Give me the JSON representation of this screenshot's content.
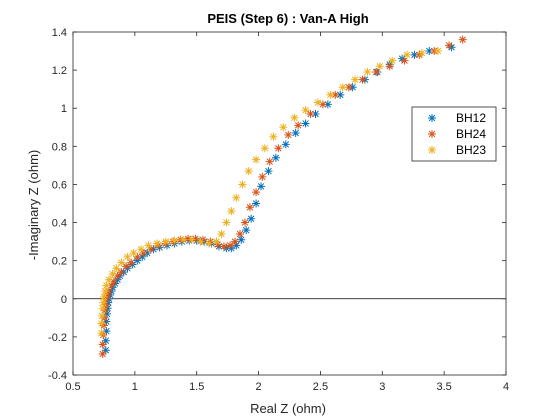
{
  "chart_data": {
    "type": "scatter",
    "title": "PEIS (Step 6) : Van-A High",
    "xlabel": "Real Z (ohm)",
    "ylabel": "-Imaginary Z (ohm)",
    "xlim": [
      0.5,
      4
    ],
    "ylim": [
      -0.4,
      1.4
    ],
    "x_ticks": [
      0.5,
      1,
      1.5,
      2,
      2.5,
      3,
      3.5,
      4
    ],
    "y_ticks": [
      -0.4,
      -0.2,
      0,
      0.2,
      0.4,
      0.6,
      0.8,
      1,
      1.2,
      1.4
    ],
    "x_tick_labels": [
      "0.5",
      "1",
      "1.5",
      "2",
      "2.5",
      "3",
      "3.5",
      "4"
    ],
    "y_tick_labels": [
      "-0.4",
      "-0.2",
      "0",
      "0.2",
      "0.4",
      "0.6",
      "0.8",
      "1",
      "1.2",
      "1.4"
    ],
    "zero_line": true,
    "grid": false,
    "legend_position": "top-right",
    "series": [
      {
        "name": "BH12",
        "color": "#0072BD",
        "marker": "asterisk",
        "points": [
          [
            0.765,
            -0.27
          ],
          [
            0.765,
            -0.22
          ],
          [
            0.77,
            -0.17
          ],
          [
            0.77,
            -0.12
          ],
          [
            0.775,
            -0.08
          ],
          [
            0.78,
            -0.05
          ],
          [
            0.785,
            -0.02
          ],
          [
            0.79,
            0.0
          ],
          [
            0.8,
            0.02
          ],
          [
            0.81,
            0.04
          ],
          [
            0.82,
            0.06
          ],
          [
            0.84,
            0.08
          ],
          [
            0.86,
            0.1
          ],
          [
            0.88,
            0.12
          ],
          [
            0.91,
            0.14
          ],
          [
            0.94,
            0.16
          ],
          [
            0.98,
            0.18
          ],
          [
            1.02,
            0.2
          ],
          [
            1.06,
            0.22
          ],
          [
            1.1,
            0.24
          ],
          [
            1.15,
            0.26
          ],
          [
            1.2,
            0.27
          ],
          [
            1.26,
            0.28
          ],
          [
            1.32,
            0.29
          ],
          [
            1.38,
            0.3
          ],
          [
            1.44,
            0.305
          ],
          [
            1.5,
            0.305
          ],
          [
            1.56,
            0.3
          ],
          [
            1.62,
            0.29
          ],
          [
            1.68,
            0.275
          ],
          [
            1.74,
            0.265
          ],
          [
            1.78,
            0.265
          ],
          [
            1.82,
            0.28
          ],
          [
            1.86,
            0.31
          ],
          [
            1.9,
            0.36
          ],
          [
            1.94,
            0.42
          ],
          [
            1.98,
            0.5
          ],
          [
            2.02,
            0.59
          ],
          [
            2.08,
            0.67
          ],
          [
            2.14,
            0.74
          ],
          [
            2.22,
            0.81
          ],
          [
            2.3,
            0.87
          ],
          [
            2.38,
            0.92
          ],
          [
            2.46,
            0.97
          ],
          [
            2.56,
            1.02
          ],
          [
            2.66,
            1.07
          ],
          [
            2.76,
            1.11
          ],
          [
            2.86,
            1.15
          ],
          [
            2.96,
            1.19
          ],
          [
            3.06,
            1.23
          ],
          [
            3.16,
            1.26
          ],
          [
            3.26,
            1.28
          ],
          [
            3.38,
            1.3
          ],
          [
            3.56,
            1.32
          ]
        ]
      },
      {
        "name": "BH24",
        "color": "#D95319",
        "marker": "asterisk",
        "points": [
          [
            0.74,
            -0.29
          ],
          [
            0.74,
            -0.24
          ],
          [
            0.745,
            -0.19
          ],
          [
            0.75,
            -0.14
          ],
          [
            0.755,
            -0.1
          ],
          [
            0.76,
            -0.06
          ],
          [
            0.765,
            -0.03
          ],
          [
            0.77,
            0.0
          ],
          [
            0.78,
            0.02
          ],
          [
            0.79,
            0.04
          ],
          [
            0.81,
            0.07
          ],
          [
            0.83,
            0.09
          ],
          [
            0.86,
            0.12
          ],
          [
            0.89,
            0.14
          ],
          [
            0.93,
            0.17
          ],
          [
            0.97,
            0.19
          ],
          [
            1.02,
            0.22
          ],
          [
            1.07,
            0.24
          ],
          [
            1.13,
            0.26
          ],
          [
            1.19,
            0.28
          ],
          [
            1.25,
            0.29
          ],
          [
            1.31,
            0.3
          ],
          [
            1.37,
            0.31
          ],
          [
            1.43,
            0.315
          ],
          [
            1.49,
            0.315
          ],
          [
            1.55,
            0.31
          ],
          [
            1.61,
            0.3
          ],
          [
            1.67,
            0.285
          ],
          [
            1.72,
            0.275
          ],
          [
            1.77,
            0.28
          ],
          [
            1.81,
            0.3
          ],
          [
            1.85,
            0.34
          ],
          [
            1.89,
            0.4
          ],
          [
            1.93,
            0.48
          ],
          [
            1.98,
            0.56
          ],
          [
            2.03,
            0.64
          ],
          [
            2.09,
            0.72
          ],
          [
            2.16,
            0.79
          ],
          [
            2.24,
            0.86
          ],
          [
            2.32,
            0.91
          ],
          [
            2.42,
            0.97
          ],
          [
            2.52,
            1.02
          ],
          [
            2.62,
            1.07
          ],
          [
            2.73,
            1.11
          ],
          [
            2.84,
            1.15
          ],
          [
            2.95,
            1.19
          ],
          [
            3.06,
            1.22
          ],
          [
            3.18,
            1.25
          ],
          [
            3.3,
            1.28
          ],
          [
            3.42,
            1.3
          ],
          [
            3.54,
            1.33
          ],
          [
            3.65,
            1.36
          ]
        ]
      },
      {
        "name": "BH23",
        "color": "#EDB120",
        "marker": "asterisk",
        "points": [
          [
            0.73,
            -0.18
          ],
          [
            0.73,
            -0.13
          ],
          [
            0.735,
            -0.09
          ],
          [
            0.74,
            -0.05
          ],
          [
            0.745,
            -0.02
          ],
          [
            0.75,
            0.01
          ],
          [
            0.76,
            0.04
          ],
          [
            0.77,
            0.07
          ],
          [
            0.79,
            0.1
          ],
          [
            0.82,
            0.13
          ],
          [
            0.85,
            0.16
          ],
          [
            0.89,
            0.19
          ],
          [
            0.94,
            0.22
          ],
          [
            0.99,
            0.24
          ],
          [
            1.05,
            0.26
          ],
          [
            1.11,
            0.28
          ],
          [
            1.18,
            0.29
          ],
          [
            1.25,
            0.3
          ],
          [
            1.32,
            0.305
          ],
          [
            1.39,
            0.31
          ],
          [
            1.46,
            0.31
          ],
          [
            1.53,
            0.3
          ],
          [
            1.6,
            0.29
          ],
          [
            1.66,
            0.3
          ],
          [
            1.7,
            0.34
          ],
          [
            1.74,
            0.4
          ],
          [
            1.78,
            0.46
          ],
          [
            1.82,
            0.53
          ],
          [
            1.87,
            0.6
          ],
          [
            1.92,
            0.67
          ],
          [
            1.98,
            0.73
          ],
          [
            2.05,
            0.79
          ],
          [
            2.12,
            0.85
          ],
          [
            2.2,
            0.9
          ],
          [
            2.29,
            0.95
          ],
          [
            2.38,
            0.99
          ],
          [
            2.48,
            1.03
          ],
          [
            2.58,
            1.07
          ],
          [
            2.68,
            1.11
          ],
          [
            2.78,
            1.15
          ],
          [
            2.88,
            1.19
          ],
          [
            2.98,
            1.22
          ],
          [
            3.08,
            1.25
          ],
          [
            3.2,
            1.28
          ],
          [
            3.32,
            1.29
          ],
          [
            3.45,
            1.3
          ]
        ]
      }
    ]
  }
}
